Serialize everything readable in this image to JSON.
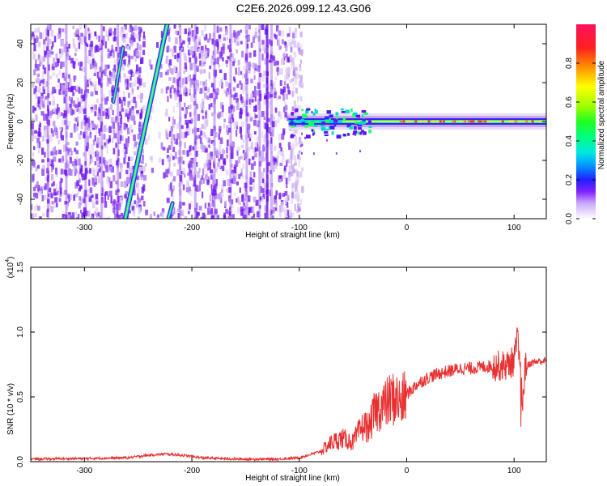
{
  "title": "C2E6.2026.099.12.43.G06",
  "chart_data": [
    {
      "type": "heatmap",
      "xlabel": "Height of straight line (km)",
      "ylabel": "Frequency (Hz)",
      "xlim": [
        -350,
        130
      ],
      "ylim": [
        -50,
        50
      ],
      "x_ticks": [
        -300,
        -200,
        -100,
        0,
        100
      ],
      "y_ticks": [
        -40,
        -20,
        0,
        20,
        40
      ],
      "colorbar": {
        "label": "Normalized spectral amplitude",
        "range": [
          0,
          1
        ],
        "ticks": [
          0.0,
          0.2,
          0.4,
          0.6,
          0.8
        ]
      },
      "features": {
        "scatter_region_x": [
          -350,
          -98
        ],
        "main_streak": {
          "x_start": -262,
          "x_end": -223,
          "freq_start": -50,
          "freq_end": 50
        },
        "short_streak": {
          "x_start": -273,
          "x_end": -264,
          "freq_start": 10,
          "freq_end": 38
        },
        "lower_streak": {
          "x_start": -222,
          "x_end": -218,
          "freq_start": -50,
          "freq_end": -42
        },
        "carrier_start_x": -110,
        "carrier_end_x": 130,
        "carrier_freq": 0
      }
    },
    {
      "type": "line",
      "xlabel": "Height of straight line (km)",
      "ylabel": "SNR (10 * v/v)",
      "y_multiplier_label": "(x10",
      "y_multiplier_exp": "4",
      "y_multiplier_close": ")",
      "xlim": [
        -350,
        130
      ],
      "ylim": [
        0,
        1.5
      ],
      "x_ticks": [
        -300,
        -200,
        -100,
        0,
        100
      ],
      "y_ticks": [
        "0.0",
        "0.5",
        "1.0",
        "1.5"
      ],
      "series": [
        {
          "color": "#e83030",
          "x": [
            -350,
            -300,
            -260,
            -240,
            -225,
            -210,
            -190,
            -160,
            -120,
            -100,
            -80,
            -70,
            -60,
            -50,
            -45,
            -40,
            -35,
            -30,
            -25,
            -20,
            -15,
            -10,
            -5,
            0,
            10,
            20,
            30,
            40,
            50,
            60,
            70,
            80,
            90,
            95,
            100,
            103,
            105,
            107,
            108,
            110,
            115,
            120,
            130
          ],
          "y": [
            0.02,
            0.025,
            0.03,
            0.05,
            0.06,
            0.05,
            0.03,
            0.02,
            0.02,
            0.03,
            0.08,
            0.15,
            0.18,
            0.15,
            0.22,
            0.28,
            0.26,
            0.38,
            0.42,
            0.44,
            0.48,
            0.49,
            0.45,
            0.52,
            0.6,
            0.65,
            0.68,
            0.7,
            0.72,
            0.72,
            0.73,
            0.74,
            0.74,
            0.75,
            0.78,
            0.95,
            0.78,
            0.55,
            0.45,
            0.72,
            0.76,
            0.77,
            0.78
          ]
        }
      ]
    }
  ]
}
